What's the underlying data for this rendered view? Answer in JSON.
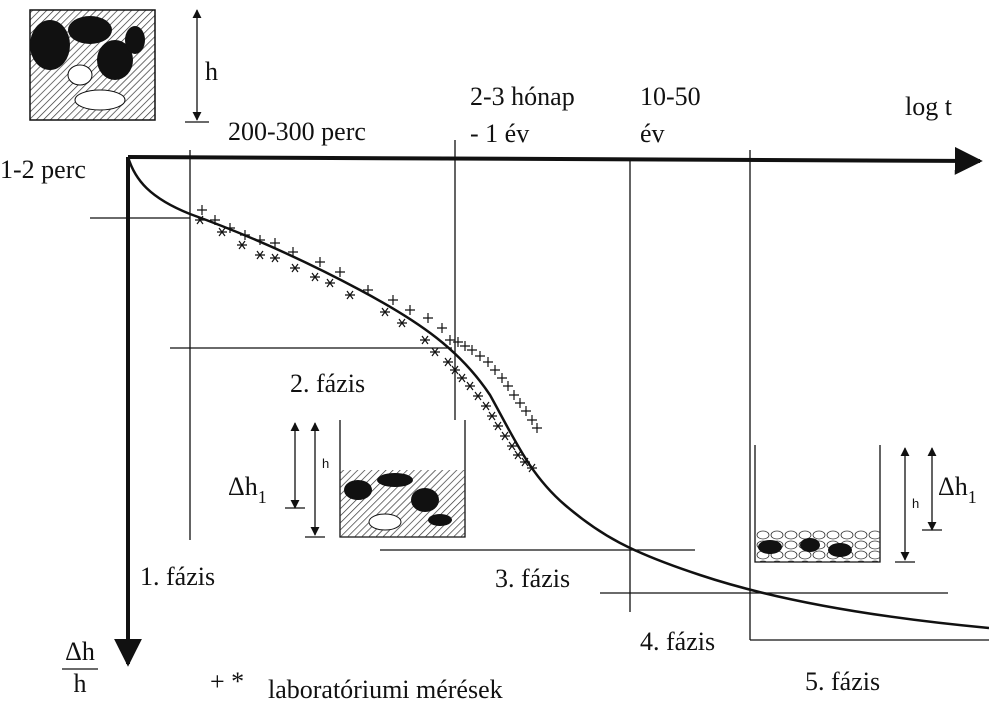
{
  "header": {
    "h_label": "h",
    "time_axis_label": "log t"
  },
  "time_labels": {
    "t1": "1-2 perc",
    "t2": "200-300 perc",
    "t3_line1": "2-3 hónap",
    "t3_line2": "- 1 év",
    "t4_line1": "10-50",
    "t4_line2": "év"
  },
  "phases": [
    "1. fázis",
    "2. fázis",
    "3. fázis",
    "4. fázis",
    "5. fázis"
  ],
  "insets": {
    "left": {
      "delta": "Δh",
      "sub": "1",
      "h": "h"
    },
    "right": {
      "delta": "Δh",
      "sub": "1",
      "h": "h"
    }
  },
  "y_axis": {
    "numerator": "Δh",
    "denominator": "h"
  },
  "legend": {
    "symbols": "+ *",
    "text": "laboratóriumi mérések"
  }
}
